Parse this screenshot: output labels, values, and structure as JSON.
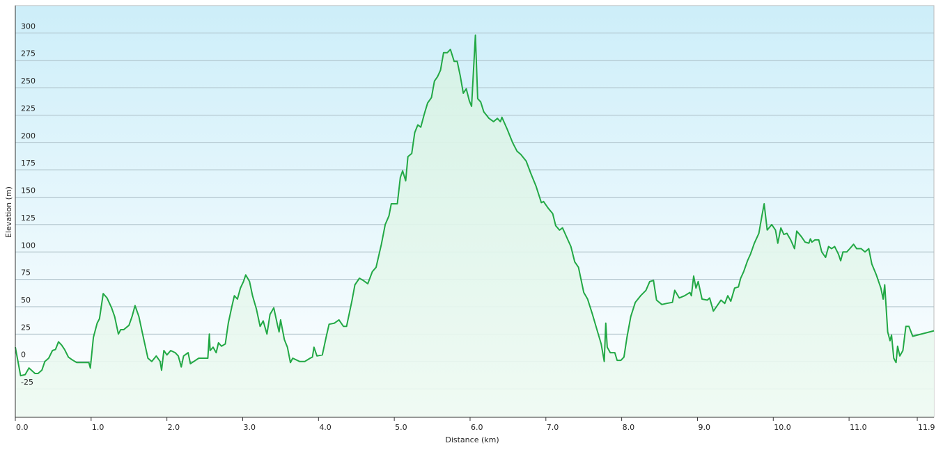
{
  "chart_data": {
    "type": "area",
    "xlabel": "Distance  (km)",
    "ylabel": "Elevation (m)",
    "color": "#22a845",
    "grid": true,
    "xlim": [
      0,
      12.12
    ],
    "ylim": [
      -51,
      325
    ],
    "xticks": [
      {
        "value": 0,
        "label": "0.0"
      },
      {
        "value": 1,
        "label": "1.0"
      },
      {
        "value": 2,
        "label": "2.0"
      },
      {
        "value": 3,
        "label": "3.0"
      },
      {
        "value": 4,
        "label": "4.0"
      },
      {
        "value": 5,
        "label": "5.0"
      },
      {
        "value": 6,
        "label": "6.0"
      },
      {
        "value": 7,
        "label": "7.0"
      },
      {
        "value": 8,
        "label": "8.0"
      },
      {
        "value": 9,
        "label": "9.0"
      },
      {
        "value": 10,
        "label": "10.0"
      },
      {
        "value": 11,
        "label": "11.0"
      },
      11.9
    ],
    "yticks": [
      -25,
      0,
      25,
      50,
      75,
      100,
      125,
      150,
      175,
      200,
      225,
      250,
      275,
      300
    ],
    "x": [
      0.0,
      0.07,
      0.13,
      0.18,
      0.26,
      0.3,
      0.35,
      0.39,
      0.44,
      0.49,
      0.53,
      0.57,
      0.61,
      0.65,
      0.7,
      0.74,
      0.81,
      0.9,
      0.97,
      0.99,
      1.03,
      1.08,
      1.11,
      1.16,
      1.21,
      1.27,
      1.31,
      1.36,
      1.39,
      1.43,
      1.5,
      1.54,
      1.58,
      1.63,
      1.68,
      1.75,
      1.8,
      1.86,
      1.91,
      1.93,
      1.96,
      2.0,
      2.05,
      2.11,
      2.15,
      2.19,
      2.22,
      2.28,
      2.31,
      2.42,
      2.54,
      2.56,
      2.57,
      2.61,
      2.65,
      2.68,
      2.72,
      2.77,
      2.81,
      2.86,
      2.89,
      2.93,
      2.97,
      3.01,
      3.04,
      3.09,
      3.13,
      3.18,
      3.23,
      3.27,
      3.32,
      3.36,
      3.41,
      3.46,
      3.48,
      3.5,
      3.55,
      3.59,
      3.63,
      3.66,
      3.75,
      3.82,
      3.89,
      3.92,
      3.94,
      3.98,
      4.05,
      4.1,
      4.14,
      4.21,
      4.27,
      4.33,
      4.37,
      4.44,
      4.48,
      4.54,
      4.59,
      4.65,
      4.71,
      4.76,
      4.83,
      4.88,
      4.93,
      4.96,
      5.04,
      5.08,
      5.11,
      5.15,
      5.18,
      5.23,
      5.27,
      5.31,
      5.35,
      5.4,
      5.44,
      5.49,
      5.53,
      5.57,
      5.61,
      5.65,
      5.7,
      5.74,
      5.79,
      5.83,
      5.87,
      5.91,
      5.95,
      5.99,
      6.02,
      6.07,
      6.1,
      6.14,
      6.18,
      6.25,
      6.31,
      6.36,
      6.4,
      6.42,
      6.49,
      6.56,
      6.62,
      6.67,
      6.74,
      6.8,
      6.87,
      6.94,
      6.97,
      7.03,
      7.09,
      7.13,
      7.18,
      7.22,
      7.29,
      7.33,
      7.38,
      7.43,
      7.5,
      7.55,
      7.61,
      7.67,
      7.73,
      7.77,
      7.79,
      7.81,
      7.85,
      7.91,
      7.94,
      7.99,
      8.03,
      8.07,
      8.12,
      8.18,
      8.25,
      8.32,
      8.37,
      8.42,
      8.46,
      8.53,
      8.59,
      8.67,
      8.7,
      8.76,
      8.83,
      8.9,
      8.92,
      8.95,
      8.98,
      9.01,
      9.06,
      9.13,
      9.16,
      9.21,
      9.26,
      9.31,
      9.36,
      9.4,
      9.44,
      9.49,
      9.54,
      9.57,
      9.61,
      9.66,
      9.7,
      9.75,
      9.81,
      9.85,
      9.88,
      9.92,
      9.98,
      10.03,
      10.06,
      10.1,
      10.14,
      10.18,
      10.23,
      10.28,
      10.31,
      10.37,
      10.42,
      10.47,
      10.49,
      10.51,
      10.55,
      10.6,
      10.64,
      10.69,
      10.73,
      10.77,
      10.81,
      10.86,
      10.89,
      10.92,
      10.97,
      11.01,
      11.06,
      11.1,
      11.16,
      11.21,
      11.26,
      11.3,
      11.36,
      11.42,
      11.45,
      11.47,
      11.51,
      11.54,
      11.56,
      11.59,
      11.62,
      11.64,
      11.67,
      11.71,
      11.75,
      11.79,
      11.84,
      12.12
    ],
    "values": [
      13,
      -13,
      -12,
      -6,
      -11,
      -11,
      -8,
      0,
      3,
      10,
      11,
      18,
      15,
      11,
      4,
      2,
      -1,
      -1,
      -1,
      -6,
      22,
      35,
      39,
      62,
      58,
      49,
      41,
      25,
      29,
      29,
      33,
      41,
      51,
      41,
      25,
      3,
      0,
      5,
      0,
      -8,
      10,
      6,
      10,
      8,
      5,
      -5,
      5,
      8,
      -2,
      3,
      3,
      25,
      10,
      13,
      8,
      17,
      14,
      16,
      35,
      51,
      60,
      57,
      67,
      73,
      79,
      73,
      60,
      48,
      32,
      37,
      25,
      43,
      49,
      33,
      27,
      38,
      20,
      13,
      -1,
      3,
      0,
      0,
      3,
      4,
      13,
      5,
      6,
      22,
      34,
      35,
      38,
      32,
      32,
      55,
      70,
      76,
      74,
      71,
      82,
      86,
      107,
      125,
      133,
      144,
      144,
      168,
      174,
      165,
      187,
      190,
      209,
      216,
      214,
      227,
      236,
      241,
      256,
      260,
      266,
      282,
      282,
      285,
      274,
      274,
      261,
      245,
      249,
      238,
      233,
      298,
      240,
      237,
      228,
      222,
      219,
      222,
      219,
      223,
      212,
      200,
      192,
      189,
      183,
      172,
      160,
      145,
      146,
      140,
      135,
      124,
      120,
      122,
      111,
      105,
      91,
      86,
      63,
      57,
      44,
      30,
      16,
      0,
      35,
      13,
      8,
      8,
      1,
      1,
      4,
      22,
      41,
      54,
      60,
      65,
      73,
      74,
      56,
      52,
      53,
      54,
      65,
      58,
      60,
      63,
      60,
      78,
      67,
      73,
      57,
      56,
      58,
      46,
      51,
      56,
      53,
      60,
      55,
      67,
      68,
      76,
      82,
      92,
      98,
      108,
      117,
      133,
      144,
      120,
      125,
      120,
      108,
      122,
      116,
      117,
      111,
      103,
      119,
      114,
      109,
      108,
      112,
      109,
      111,
      111,
      100,
      95,
      105,
      103,
      105,
      98,
      92,
      100,
      100,
      103,
      107,
      103,
      103,
      100,
      103,
      89,
      79,
      67,
      57,
      70,
      27,
      19,
      24,
      3,
      -1,
      14,
      5,
      10,
      32,
      32,
      23,
      28
    ]
  }
}
